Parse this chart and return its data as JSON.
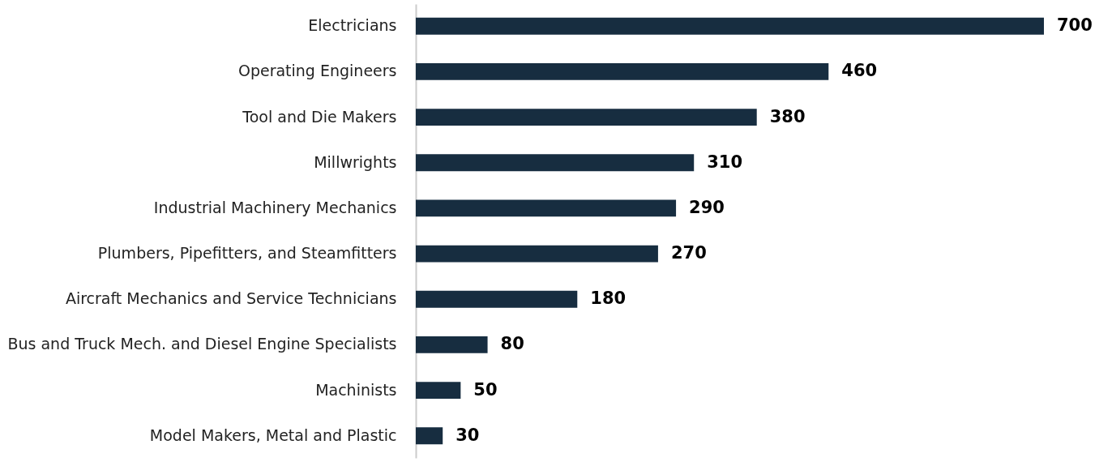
{
  "chart_data": {
    "type": "bar",
    "orientation": "horizontal",
    "categories": [
      "Electricians",
      "Operating Engineers",
      "Tool and Die Makers",
      "Millwrights",
      "Industrial Machinery Mechanics",
      "Plumbers, Pipefitters, and Steamfitters",
      "Aircraft Mechanics and Service Technicians",
      "Bus and Truck Mech. and Diesel Engine Specialists",
      "Machinists",
      "Model Makers, Metal and Plastic"
    ],
    "values": [
      700,
      460,
      380,
      310,
      290,
      270,
      180,
      80,
      50,
      30
    ],
    "color": "#172d40",
    "data_labels": true
  }
}
